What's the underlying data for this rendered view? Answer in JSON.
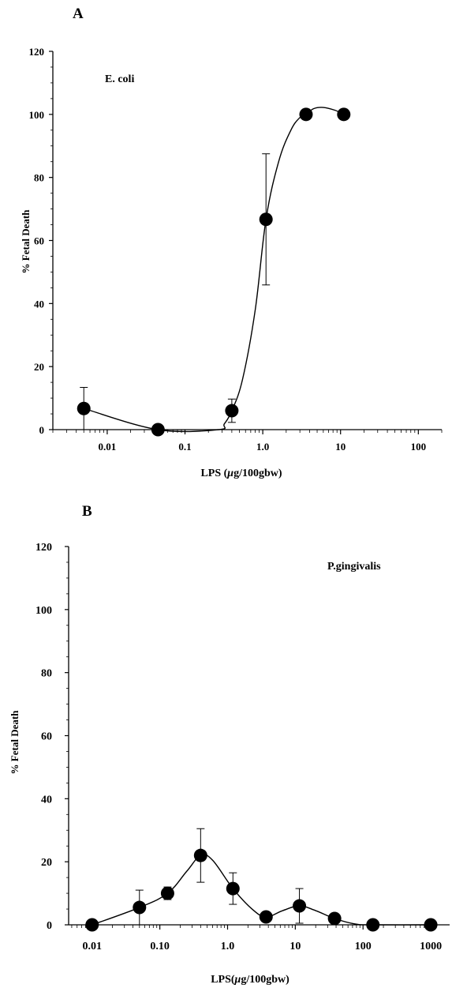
{
  "chart_data": [
    {
      "panel_label": "A",
      "type": "scatter",
      "x_scale": "log",
      "xlim": [
        0.002,
        200
      ],
      "ylim": [
        0,
        120
      ],
      "xlabel_prefix": "LPS (",
      "xlabel_mu": "μ",
      "xlabel_suffix": "g/100gbw)",
      "ylabel": "% Fetal Death",
      "x_tick_labels": [
        "0.01",
        "0.1",
        "1.0",
        "10",
        "100"
      ],
      "x_tick_values": [
        0.01,
        0.1,
        1,
        10,
        100
      ],
      "y_tick_labels": [
        "0",
        "20",
        "40",
        "60",
        "80",
        "100",
        "120"
      ],
      "y_tick_values": [
        0,
        20,
        40,
        60,
        80,
        100,
        120
      ],
      "series": [
        {
          "name": "E. coli",
          "x": [
            0.005,
            0.045,
            0.4,
            1.1,
            3.6,
            11.0
          ],
          "y": [
            6.7,
            0,
            6.0,
            66.7,
            100,
            100
          ],
          "err": [
            6.7,
            0,
            3.7,
            20.8,
            0,
            0
          ]
        }
      ],
      "fit_curve": {
        "x": [
          0.005,
          0.045,
          0.27,
          0.32,
          0.4,
          0.55,
          0.8,
          1.1,
          1.6,
          2.3,
          3.0,
          3.6,
          4.5,
          6.0,
          8.5,
          11.0
        ],
        "y": [
          6.7,
          0,
          0,
          1.8,
          6.0,
          16,
          38,
          66.7,
          85,
          95,
          99,
          100,
          101.8,
          102.2,
          101.3,
          100
        ]
      }
    },
    {
      "panel_label": "B",
      "type": "scatter",
      "x_scale": "log",
      "xlim": [
        0.0045,
        1900
      ],
      "ylim": [
        0,
        120
      ],
      "xlabel_prefix": "LPS(",
      "xlabel_mu": "μ",
      "xlabel_suffix": "g/100gbw)",
      "ylabel": "% Fetal Death",
      "x_tick_labels": [
        "0.01",
        "0.10",
        "1.0",
        "10",
        "100",
        "1000"
      ],
      "x_tick_values": [
        0.01,
        0.1,
        1,
        10,
        100,
        1000
      ],
      "y_tick_labels": [
        "0",
        "20",
        "40",
        "60",
        "80",
        "100",
        "120"
      ],
      "y_tick_values": [
        0,
        20,
        40,
        60,
        80,
        100,
        120
      ],
      "series": [
        {
          "name": "P.gingivalis",
          "x": [
            0.01,
            0.05,
            0.13,
            0.4,
            1.2,
            3.7,
            11.5,
            38,
            140,
            1000
          ],
          "y": [
            0,
            5.5,
            10,
            22,
            11.5,
            2.5,
            6,
            2,
            0,
            0
          ],
          "err": [
            0,
            5.5,
            2,
            8.5,
            5,
            0,
            5.5,
            0,
            0,
            0
          ]
        }
      ],
      "fit_curve": {
        "x": [
          0.01,
          0.05,
          0.13,
          0.25,
          0.4,
          0.6,
          1.2,
          2.3,
          3.7,
          6.5,
          11.5,
          20,
          38,
          75,
          140,
          1000
        ],
        "y": [
          0,
          5.5,
          10,
          17,
          22,
          20.5,
          11.5,
          5,
          2.5,
          4.5,
          6,
          4.5,
          2,
          0.3,
          0,
          0
        ]
      }
    }
  ]
}
